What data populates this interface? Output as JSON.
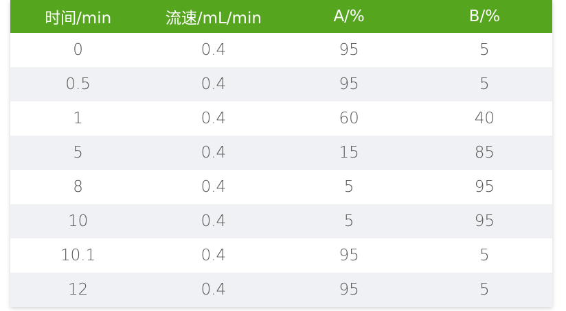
{
  "colors": {
    "header_bg": "#56a51f",
    "row_alt_bg": "#f0f1f5",
    "text": "#555555"
  },
  "headers": [
    "时间/min",
    "流速/mL/min",
    "A/%",
    "B/%"
  ],
  "rows": [
    [
      "0",
      "0.4",
      "95",
      "5"
    ],
    [
      "0.5",
      "0.4",
      "95",
      "5"
    ],
    [
      "1",
      "0.4",
      "60",
      "40"
    ],
    [
      "5",
      "0.4",
      "15",
      "85"
    ],
    [
      "8",
      "0.4",
      "5",
      "95"
    ],
    [
      "10",
      "0.4",
      "5",
      "95"
    ],
    [
      "10.1",
      "0.4",
      "95",
      "5"
    ],
    [
      "12",
      "0.4",
      "95",
      "5"
    ]
  ]
}
